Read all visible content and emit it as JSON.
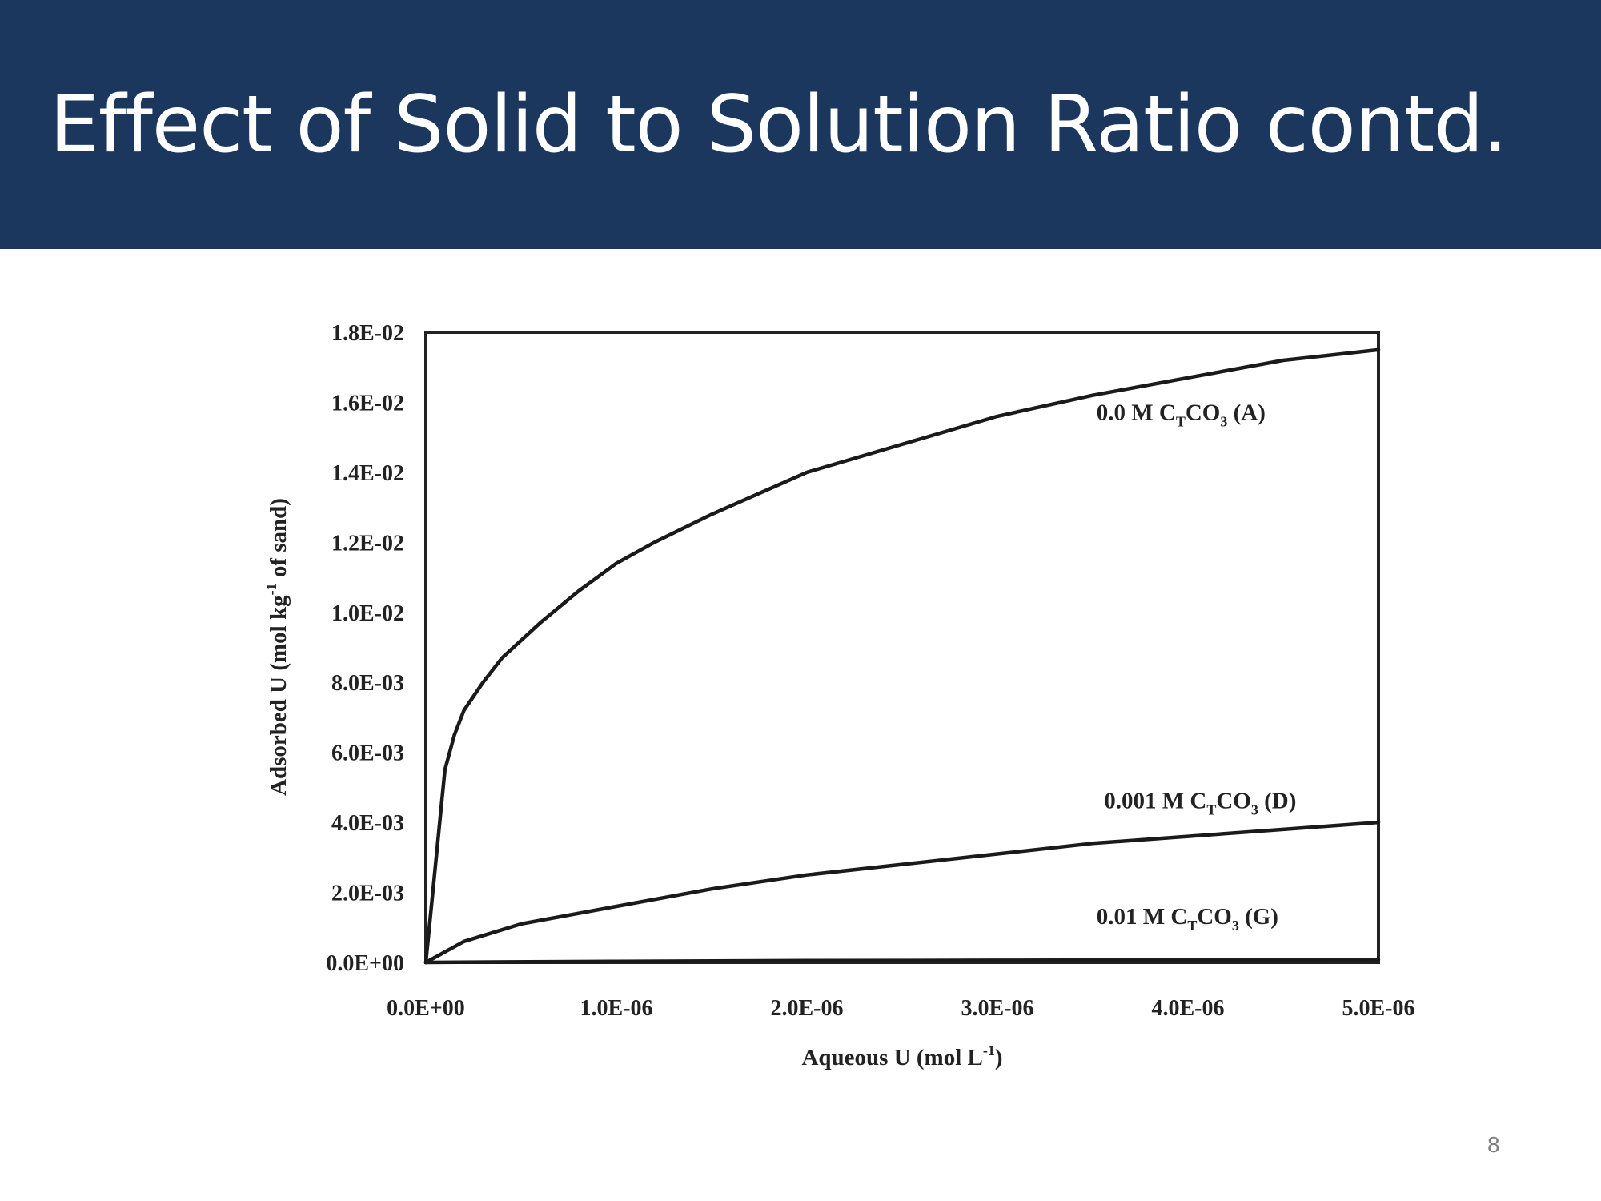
{
  "slide": {
    "title": "Effect of Solid to Solution Ratio contd.",
    "page_number": "8",
    "title_bar_color": "#1b375e"
  },
  "chart_data": {
    "type": "line",
    "title": "",
    "xlabel": {
      "main": "Aqueous U (mol L",
      "sup": "-1",
      "end": ")"
    },
    "ylabel": {
      "main": "Adsorbed U (mol kg",
      "sup": "-1",
      "end": " of sand)"
    },
    "xlim": [
      0,
      5e-06
    ],
    "ylim": [
      0,
      0.018
    ],
    "x_ticks": [
      {
        "value": 0,
        "label": "0.0E+00"
      },
      {
        "value": 1e-06,
        "label": "1.0E-06"
      },
      {
        "value": 2e-06,
        "label": "2.0E-06"
      },
      {
        "value": 3e-06,
        "label": "3.0E-06"
      },
      {
        "value": 4e-06,
        "label": "4.0E-06"
      },
      {
        "value": 5e-06,
        "label": "5.0E-06"
      }
    ],
    "y_ticks": [
      {
        "value": 0,
        "label": "0.0E+00"
      },
      {
        "value": 0.002,
        "label": "2.0E-03"
      },
      {
        "value": 0.004,
        "label": "4.0E-03"
      },
      {
        "value": 0.006,
        "label": "6.0E-03"
      },
      {
        "value": 0.008,
        "label": "8.0E-03"
      },
      {
        "value": 0.01,
        "label": "1.0E-02"
      },
      {
        "value": 0.012,
        "label": "1.2E-02"
      },
      {
        "value": 0.014,
        "label": "1.4E-02"
      },
      {
        "value": 0.016,
        "label": "1.6E-02"
      },
      {
        "value": 0.018,
        "label": "1.8E-02"
      }
    ],
    "grid": false,
    "series": [
      {
        "label": {
          "pre": "0.0 M C",
          "sub1": "T",
          "mid": "CO",
          "sub2": "3",
          "post": " (A)"
        },
        "label_at": [
          3.52e-06,
          0.0155
        ],
        "x": [
          0,
          1e-07,
          1.5e-07,
          2e-07,
          3e-07,
          4e-07,
          5e-07,
          6e-07,
          8e-07,
          1e-06,
          1.2e-06,
          1.5e-06,
          2e-06,
          2.5e-06,
          3e-06,
          3.5e-06,
          4e-06,
          4.5e-06,
          5e-06
        ],
        "y": [
          0,
          0.0055,
          0.0065,
          0.0072,
          0.008,
          0.0087,
          0.0092,
          0.0097,
          0.0106,
          0.0114,
          0.012,
          0.0128,
          0.014,
          0.0148,
          0.0156,
          0.0162,
          0.0167,
          0.0172,
          0.0175
        ]
      },
      {
        "label": {
          "pre": "0.001 M C",
          "sub1": "T",
          "mid": "CO",
          "sub2": "3",
          "post": " (D)"
        },
        "label_at": [
          3.56e-06,
          0.0044
        ],
        "x": [
          0,
          2e-07,
          5e-07,
          1e-06,
          1.5e-06,
          2e-06,
          2.5e-06,
          3e-06,
          3.5e-06,
          4e-06,
          4.5e-06,
          5e-06
        ],
        "y": [
          0,
          0.0006,
          0.0011,
          0.0016,
          0.0021,
          0.0025,
          0.0028,
          0.0031,
          0.0034,
          0.0036,
          0.0038,
          0.004
        ]
      },
      {
        "label": {
          "pre": "0.01 M C",
          "sub1": "T",
          "mid": "CO",
          "sub2": "3",
          "post": " (G)"
        },
        "label_at": [
          3.52e-06,
          0.0011
        ],
        "x": [
          0,
          1e-06,
          2e-06,
          3e-06,
          4e-06,
          5e-06
        ],
        "y": [
          0,
          3e-05,
          5e-05,
          6e-05,
          7e-05,
          8e-05
        ]
      }
    ]
  }
}
